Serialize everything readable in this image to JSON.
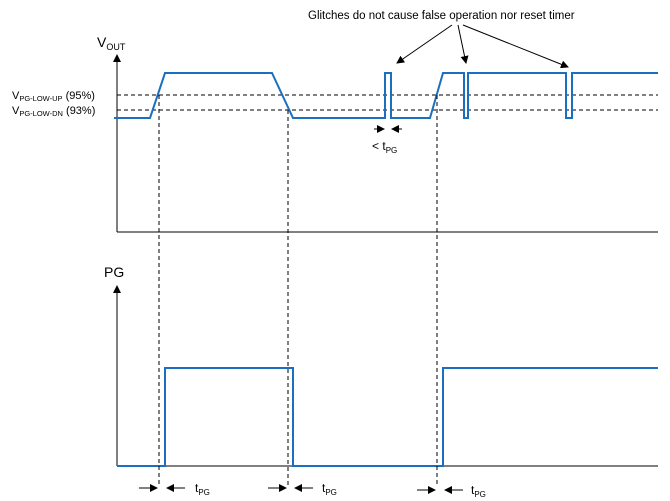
{
  "annotation": "Glitches do not cause false operation nor reset timer",
  "vout_axis": {
    "main": "V",
    "sub": "OUT"
  },
  "pg_axis": {
    "label": "PG"
  },
  "thresholds": [
    {
      "main": "V",
      "sub": "PG-LOW-UP",
      "suffix": " (95%)"
    },
    {
      "main": "V",
      "sub": "PG-LOW-DN",
      "suffix": " (93%)"
    }
  ],
  "glitch_width_label": {
    "prefix": "< t",
    "sub": "PG"
  },
  "tpg_label": {
    "main": "t",
    "sub": "PG"
  },
  "colors": {
    "waveform": "#1a6fc0",
    "lines": "#000000"
  }
}
